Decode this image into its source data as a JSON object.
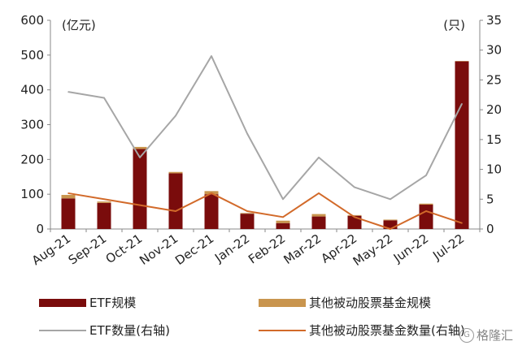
{
  "chart_data": {
    "type": "bar",
    "left_unit": "(亿元)",
    "right_unit": "(只)",
    "categories": [
      "Aug-21",
      "Sep-21",
      "Oct-21",
      "Nov-21",
      "Dec-21",
      "Jan-22",
      "Feb-22",
      "Mar-22",
      "Apr-22",
      "May-22",
      "Jun-22",
      "Jul-22"
    ],
    "ylim_left": [
      0,
      600
    ],
    "yticks_left": [
      "0",
      "100",
      "200",
      "300",
      "400",
      "500",
      "600"
    ],
    "ylim_right": [
      0,
      35
    ],
    "yticks_right": [
      "0",
      "5",
      "10",
      "15",
      "20",
      "25",
      "30",
      "35"
    ],
    "stacked_series": [
      {
        "name": "ETF规模",
        "color": "#7a0c0c",
        "values": [
          88,
          75,
          230,
          160,
          100,
          44,
          17,
          36,
          38,
          25,
          70,
          482
        ]
      },
      {
        "name": "其他被动股票基金规模",
        "color": "#c9954e",
        "values": [
          10,
          4,
          6,
          4,
          9,
          2,
          7,
          7,
          2,
          2,
          3,
          1
        ]
      }
    ],
    "line_series": [
      {
        "name": "ETF数量(右轴)",
        "color": "#a6a6a6",
        "axis": "right",
        "values": [
          23,
          22,
          12,
          19,
          29,
          16,
          5,
          12,
          7,
          5,
          9,
          21
        ]
      },
      {
        "name": "其他被动股票基金数量(右轴)",
        "color": "#d26a2a",
        "axis": "right",
        "values": [
          6,
          5,
          4,
          3,
          6,
          3,
          2,
          6,
          2,
          0,
          3,
          1
        ]
      }
    ],
    "legend": "bottom"
  },
  "legend_labels": {
    "etf_size": "ETF规模",
    "other_size": "其他被动股票基金规模",
    "etf_count": "ETF数量(右轴)",
    "other_count": "其他被动股票基金数量(右轴)"
  },
  "watermark": {
    "text": "格隆汇",
    "logo": "G"
  }
}
